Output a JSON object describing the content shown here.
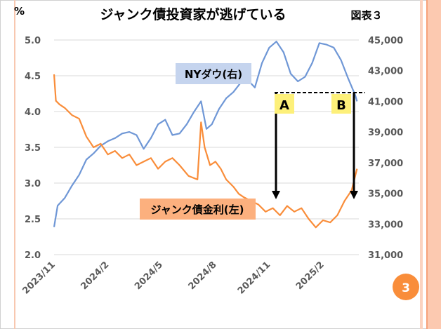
{
  "chart_data": {
    "type": "line",
    "title": "ジャンク債投資家が逃げている",
    "figure_label": "図表３",
    "left_unit": "%",
    "left_ticks": [
      "5.0",
      "4.5",
      "4.0",
      "3.5",
      "3.0",
      "2.5",
      "2.0"
    ],
    "right_ticks": [
      "45,000",
      "43,000",
      "41,000",
      "39,000",
      "37,000",
      "35,000",
      "33,000",
      "31,000"
    ],
    "ylim_left": [
      2.0,
      5.0
    ],
    "ylim_right": [
      31000,
      45000
    ],
    "x_ticks": [
      "2023/11",
      "2024/2",
      "2024/5",
      "2024/8",
      "2024/11",
      "2025/2"
    ],
    "x_range_months": [
      0,
      17
    ],
    "series": [
      {
        "name": "ジャンク債金利(左)",
        "axis": "left",
        "color": "#f98d3a",
        "x": [
          0,
          0.1,
          0.3,
          0.6,
          1,
          1.4,
          1.8,
          2.2,
          2.6,
          3,
          3.4,
          3.8,
          4.2,
          4.6,
          5,
          5.4,
          5.8,
          6.2,
          6.6,
          7,
          7.5,
          8,
          8.2,
          8.4,
          8.7,
          9,
          9.3,
          9.6,
          10,
          10.3,
          10.6,
          11,
          11.4,
          11.8,
          12.2,
          12.6,
          13,
          13.4,
          13.8,
          14.2,
          14.6,
          15,
          15.4,
          15.8,
          16.2,
          16.6,
          16.9
        ],
        "values": [
          4.52,
          4.15,
          4.1,
          4.05,
          3.95,
          3.9,
          3.65,
          3.5,
          3.55,
          3.4,
          3.45,
          3.35,
          3.4,
          3.25,
          3.3,
          3.35,
          3.2,
          3.3,
          3.35,
          3.25,
          3.1,
          3.05,
          3.85,
          3.5,
          3.25,
          3.3,
          3.2,
          3.05,
          2.95,
          2.85,
          2.8,
          2.75,
          2.7,
          2.6,
          2.65,
          2.55,
          2.68,
          2.6,
          2.65,
          2.5,
          2.38,
          2.48,
          2.45,
          2.55,
          2.75,
          2.9,
          3.2
        ]
      },
      {
        "name": "NYダウ(右)",
        "axis": "right",
        "color": "#6f97d6",
        "x": [
          0,
          0.2,
          0.6,
          1,
          1.4,
          1.8,
          2.2,
          2.6,
          3,
          3.4,
          3.8,
          4.2,
          4.6,
          5,
          5.4,
          5.8,
          6.2,
          6.6,
          7,
          7.4,
          7.8,
          8.2,
          8.5,
          8.8,
          9.2,
          9.6,
          10,
          10.4,
          10.8,
          11.2,
          11.6,
          12,
          12.4,
          12.8,
          13.2,
          13.6,
          14,
          14.4,
          14.8,
          15.2,
          15.6,
          16,
          16.4,
          16.8,
          16.9
        ],
        "values": [
          32800,
          34200,
          34700,
          35500,
          36200,
          37200,
          37600,
          38100,
          38400,
          38600,
          38900,
          39000,
          38800,
          37900,
          38600,
          39500,
          39800,
          38800,
          38900,
          39500,
          40300,
          41000,
          39200,
          39500,
          40500,
          41200,
          41600,
          42200,
          42400,
          41900,
          43500,
          44500,
          44900,
          44200,
          42800,
          42300,
          42600,
          43500,
          44800,
          44700,
          44500,
          43700,
          42500,
          41400,
          41000
        ]
      }
    ],
    "annotations": [
      "NYダウ(右)",
      "ジャンク債金利(左)",
      "A",
      "B"
    ],
    "page_badge": "3"
  }
}
